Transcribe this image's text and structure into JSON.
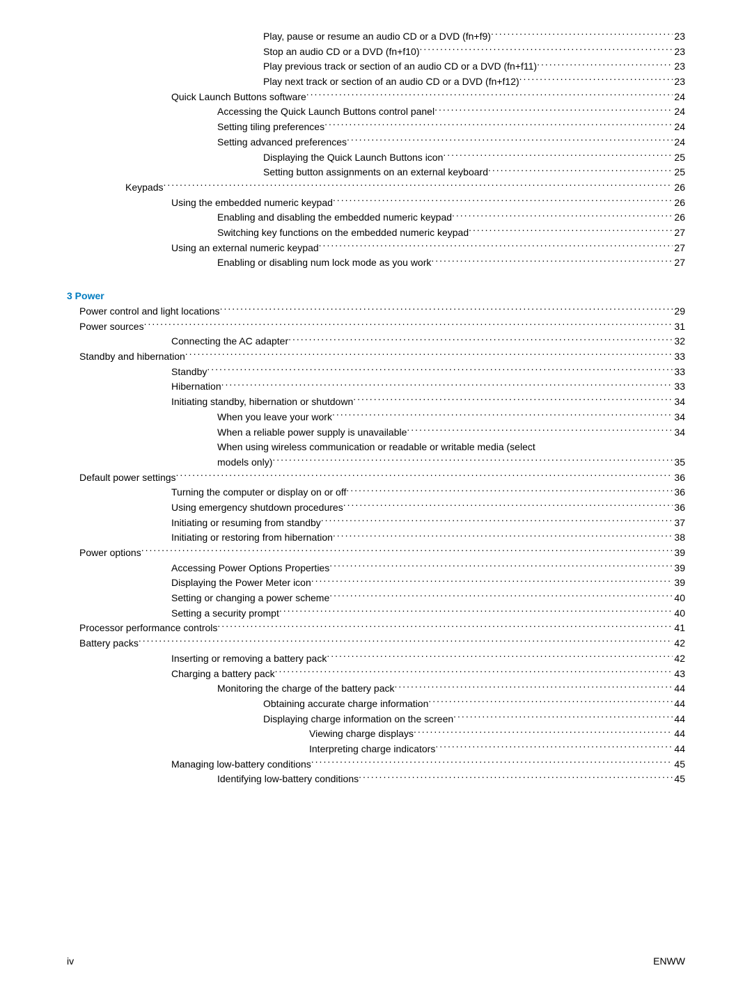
{
  "section1": [
    {
      "text": "Play, pause or resume an audio CD or a DVD (fn+f9) ",
      "page": "23",
      "indent": 4
    },
    {
      "text": "Stop an audio CD or a DVD (fn+f10) ",
      "page": "23",
      "indent": 4
    },
    {
      "text": "Play previous track or section of an audio CD or a DVD (fn+f11) ",
      "page": "23",
      "indent": 4
    },
    {
      "text": "Play next track or section of an audio CD or a DVD (fn+f12) ",
      "page": "23",
      "indent": 4
    },
    {
      "text": "Quick Launch Buttons software",
      "page": "24",
      "indent": 2
    },
    {
      "text": "Accessing the Quick Launch Buttons control panel",
      "page": "24",
      "indent": 3
    },
    {
      "text": "Setting tiling preferences",
      "page": "24",
      "indent": 3
    },
    {
      "text": "Setting advanced preferences",
      "page": "24",
      "indent": 3
    },
    {
      "text": "Displaying the Quick Launch Buttons icon",
      "page": "25",
      "indent": 4
    },
    {
      "text": "Setting button assignments on an external keyboard",
      "page": "25",
      "indent": 4
    },
    {
      "text": "Keypads ",
      "page": "26",
      "indent": 1
    },
    {
      "text": "Using the embedded numeric keypad ",
      "page": "26",
      "indent": 2
    },
    {
      "text": "Enabling and disabling the embedded numeric keypad",
      "page": "26",
      "indent": 3
    },
    {
      "text": "Switching key functions on the embedded numeric keypad",
      "page": "27",
      "indent": 3
    },
    {
      "text": "Using an external numeric keypad ",
      "page": "27",
      "indent": 2
    },
    {
      "text": "Enabling or disabling num lock mode as you work ",
      "page": "27",
      "indent": 3
    }
  ],
  "chapter": {
    "label": "3  Power"
  },
  "section2": [
    {
      "text": "Power control and light locations ",
      "page": "29",
      "indent": 0
    },
    {
      "text": "Power sources ",
      "page": "31",
      "indent": 0
    },
    {
      "text": "Connecting the AC adapter",
      "page": "32",
      "indent": 2
    },
    {
      "text": "Standby and hibernation",
      "page": "33",
      "indent": 0
    },
    {
      "text": "Standby ",
      "page": "33",
      "indent": 2
    },
    {
      "text": "Hibernation ",
      "page": "33",
      "indent": 2
    },
    {
      "text": "Initiating standby, hibernation or shutdown",
      "page": "34",
      "indent": 2
    },
    {
      "text": "When you leave your work",
      "page": "34",
      "indent": 3
    },
    {
      "text": "When a reliable power supply is unavailable ",
      "page": "34",
      "indent": 3
    },
    {
      "text": "When using wireless communication or readable or writable media (select",
      "page": "",
      "indent": 3,
      "nowrapPageOnNext": true
    },
    {
      "text": "models only)",
      "page": "35",
      "indent": 3
    },
    {
      "text": "Default power settings ",
      "page": "36",
      "indent": 0
    },
    {
      "text": "Turning the computer or display on or off ",
      "page": "36",
      "indent": 2
    },
    {
      "text": "Using emergency shutdown procedures ",
      "page": "36",
      "indent": 2
    },
    {
      "text": "Initiating or resuming from standby ",
      "page": "37",
      "indent": 2
    },
    {
      "text": "Initiating or restoring from hibernation ",
      "page": "38",
      "indent": 2
    },
    {
      "text": "Power options ",
      "page": "39",
      "indent": 0
    },
    {
      "text": "Accessing Power Options Properties",
      "page": "39",
      "indent": 2
    },
    {
      "text": "Displaying the Power Meter icon ",
      "page": "39",
      "indent": 2
    },
    {
      "text": "Setting or changing a power scheme ",
      "page": "40",
      "indent": 2
    },
    {
      "text": "Setting a security prompt ",
      "page": "40",
      "indent": 2
    },
    {
      "text": "Processor performance controls ",
      "page": "41",
      "indent": 0
    },
    {
      "text": "Battery packs",
      "page": "42",
      "indent": 0
    },
    {
      "text": "Inserting or removing a battery pack",
      "page": "42",
      "indent": 2
    },
    {
      "text": "Charging a battery pack",
      "page": "43",
      "indent": 2
    },
    {
      "text": "Monitoring the charge of the battery pack ",
      "page": "44",
      "indent": 3
    },
    {
      "text": "Obtaining accurate charge information ",
      "page": "44",
      "indent": 4
    },
    {
      "text": "Displaying charge information on the screen",
      "page": "44",
      "indent": 4
    },
    {
      "text": "Viewing charge displays",
      "page": "44",
      "indent": 5
    },
    {
      "text": "Interpreting charge indicators",
      "page": "44",
      "indent": 5
    },
    {
      "text": "Managing low-battery conditions ",
      "page": "45",
      "indent": 2
    },
    {
      "text": "Identifying low-battery conditions",
      "page": "45",
      "indent": 3
    }
  ],
  "footer": {
    "left": "iv",
    "right": "ENWW"
  }
}
